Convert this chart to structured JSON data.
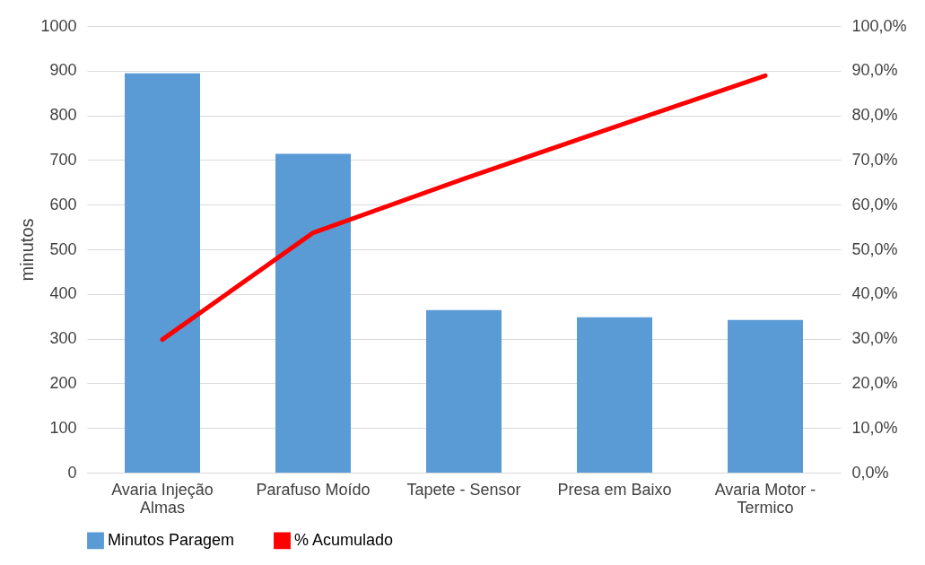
{
  "chart_data": {
    "type": "bar",
    "ylabel": "minutos",
    "categories": [
      "Avaria Injeção Almas",
      "Parafuso Moído",
      "Tapete - Sensor",
      "Presa em Baixo",
      "Avaria Motor - Termico"
    ],
    "series": [
      {
        "name": "Minutos Paragem",
        "color": "#5b9bd5",
        "values": [
          894,
          714,
          364,
          348,
          342
        ]
      },
      {
        "name": "% Acumulado",
        "type": "line",
        "axis": "y2",
        "color": "#ff0000",
        "values": [
          29.8,
          53.7,
          65.8,
          77.4,
          88.9
        ]
      }
    ],
    "ylim": [
      0,
      1000
    ],
    "yticks": [
      0,
      100,
      200,
      300,
      400,
      500,
      600,
      700,
      800,
      900,
      1000
    ],
    "y2lim": [
      0,
      100
    ],
    "y2ticks": [
      {
        "value": 0,
        "label": "0,0%"
      },
      {
        "value": 10,
        "label": "10,0%"
      },
      {
        "value": 20,
        "label": "20,0%"
      },
      {
        "value": 30,
        "label": "30,0%"
      },
      {
        "value": 40,
        "label": "40,0%"
      },
      {
        "value": 50,
        "label": "50,0%"
      },
      {
        "value": 60,
        "label": "60,0%"
      },
      {
        "value": 70,
        "label": "70,0%"
      },
      {
        "value": 80,
        "label": "80,0%"
      },
      {
        "value": 90,
        "label": "90,0%"
      },
      {
        "value": 100,
        "label": "100,0%"
      }
    ],
    "grid": "y",
    "legend": "bottom",
    "marker": "none",
    "line_style": "solid"
  }
}
